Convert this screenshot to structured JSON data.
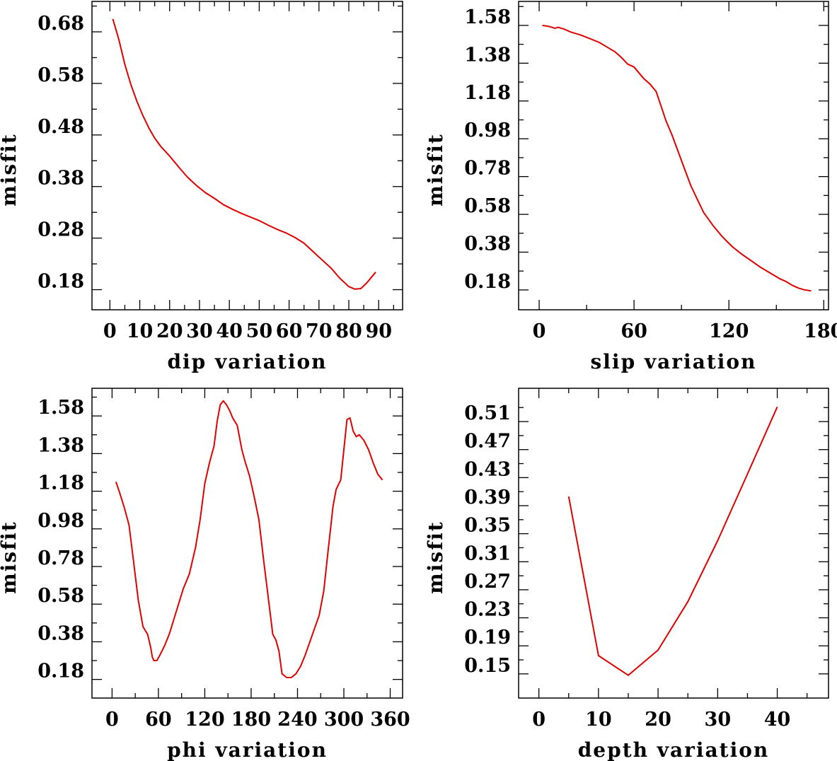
{
  "colors": {
    "curve": "#e00000",
    "axes": "#000000",
    "background": "#ffffff"
  },
  "chart_data": [
    {
      "id": "dip",
      "type": "line",
      "title": "",
      "xlabel": "dip    variation",
      "ylabel": "misfit",
      "xlim": [
        -6,
        98
      ],
      "ylim": [
        0.141,
        0.739
      ],
      "xticks": [
        0,
        10,
        20,
        30,
        40,
        50,
        60,
        70,
        80,
        90
      ],
      "xticklabels": [
        "0",
        "10",
        "20",
        "30",
        "40",
        "50",
        "60",
        "70",
        "80",
        "90"
      ],
      "xminor": [
        5,
        15,
        25,
        35,
        45,
        55,
        65,
        75,
        85,
        95
      ],
      "yticks": [
        0.18,
        0.28,
        0.38,
        0.48,
        0.58,
        0.68
      ],
      "yticklabels": [
        "0.18",
        "0.28",
        "0.38",
        "0.48",
        "0.58",
        "0.68"
      ],
      "yminor": [
        0.23,
        0.33,
        0.43,
        0.53,
        0.63,
        0.73
      ],
      "x": [
        1,
        3,
        5,
        7,
        9,
        11,
        13,
        15,
        17,
        20,
        23,
        26,
        29,
        32,
        35,
        38,
        41,
        44,
        47,
        50,
        53,
        56,
        59,
        62,
        65,
        68,
        71,
        74,
        77,
        80,
        82,
        84,
        86,
        89
      ],
      "values": [
        0.705,
        0.665,
        0.617,
        0.578,
        0.546,
        0.518,
        0.494,
        0.474,
        0.458,
        0.439,
        0.418,
        0.398,
        0.382,
        0.368,
        0.357,
        0.345,
        0.336,
        0.328,
        0.321,
        0.314,
        0.305,
        0.297,
        0.29,
        0.281,
        0.27,
        0.254,
        0.238,
        0.222,
        0.202,
        0.186,
        0.181,
        0.182,
        0.193,
        0.214
      ]
    },
    {
      "id": "slip",
      "type": "line",
      "title": "",
      "xlabel": "slip    variation",
      "ylabel": "misfit",
      "xlim": [
        -13,
        183
      ],
      "ylim": [
        0.075,
        1.707
      ],
      "xticks": [
        0,
        60,
        120,
        180
      ],
      "xticklabels": [
        "0",
        "60",
        "120",
        "180"
      ],
      "xminor": [
        30,
        90,
        150
      ],
      "yticks": [
        0.18,
        0.38,
        0.58,
        0.78,
        0.98,
        1.18,
        1.38,
        1.58
      ],
      "yticklabels": [
        "0.18",
        "0.38",
        "0.58",
        "0.78",
        "0.98",
        "1.18",
        "1.38",
        "1.58"
      ],
      "yminor": [
        0.28,
        0.48,
        0.68,
        0.88,
        1.08,
        1.28,
        1.48,
        1.68
      ],
      "x": [
        2,
        6,
        10,
        12,
        16,
        20,
        26,
        32,
        38,
        42,
        48,
        52,
        56,
        60,
        63,
        66,
        70,
        74,
        76,
        78,
        80,
        84,
        88,
        92,
        96,
        100,
        104,
        110,
        116,
        122,
        128,
        134,
        140,
        146,
        152,
        156,
        160,
        164,
        168,
        172
      ],
      "values": [
        1.58,
        1.575,
        1.565,
        1.57,
        1.56,
        1.545,
        1.53,
        1.51,
        1.49,
        1.47,
        1.44,
        1.41,
        1.375,
        1.36,
        1.33,
        1.3,
        1.27,
        1.23,
        1.18,
        1.13,
        1.08,
        1.0,
        0.91,
        0.82,
        0.73,
        0.66,
        0.59,
        0.52,
        0.46,
        0.41,
        0.37,
        0.335,
        0.3,
        0.27,
        0.24,
        0.225,
        0.205,
        0.19,
        0.18,
        0.175
      ]
    },
    {
      "id": "phi",
      "type": "line",
      "title": "",
      "xlabel": "phi     variation",
      "ylabel": "misfit",
      "xlim": [
        -26,
        376
      ],
      "ylim": [
        0.081,
        1.727
      ],
      "xticks": [
        0,
        60,
        120,
        180,
        240,
        300,
        360
      ],
      "xticklabels": [
        "0",
        "60",
        "120",
        "180",
        "240",
        "300",
        "360"
      ],
      "xminor": [
        30,
        90,
        150,
        210,
        270,
        330
      ],
      "yticks": [
        0.18,
        0.38,
        0.58,
        0.78,
        0.98,
        1.18,
        1.38,
        1.58
      ],
      "yticklabels": [
        "0.18",
        "0.38",
        "0.58",
        "0.78",
        "0.98",
        "1.18",
        "1.38",
        "1.58"
      ],
      "yminor": [
        0.28,
        0.48,
        0.68,
        0.88,
        1.08,
        1.28,
        1.48,
        1.68
      ],
      "x": [
        5,
        10,
        16,
        22,
        28,
        34,
        40,
        46,
        50,
        52,
        54,
        58,
        62,
        68,
        74,
        80,
        86,
        92,
        100,
        108,
        114,
        120,
        126,
        132,
        136,
        140,
        144,
        148,
        152,
        156,
        162,
        168,
        172,
        178,
        184,
        190,
        196,
        202,
        208,
        212,
        216,
        220,
        226,
        232,
        238,
        244,
        250,
        256,
        262,
        268,
        274,
        280,
        286,
        290,
        296,
        300,
        304,
        308,
        312,
        316,
        320,
        326,
        332,
        338,
        344,
        350
      ],
      "values": [
        1.23,
        1.17,
        1.09,
        1.0,
        0.8,
        0.6,
        0.46,
        0.42,
        0.35,
        0.3,
        0.28,
        0.28,
        0.31,
        0.36,
        0.42,
        0.5,
        0.58,
        0.66,
        0.74,
        0.88,
        1.03,
        1.22,
        1.33,
        1.42,
        1.55,
        1.64,
        1.66,
        1.64,
        1.61,
        1.57,
        1.53,
        1.4,
        1.34,
        1.26,
        1.15,
        1.03,
        0.82,
        0.62,
        0.42,
        0.39,
        0.33,
        0.21,
        0.19,
        0.19,
        0.21,
        0.25,
        0.31,
        0.38,
        0.45,
        0.52,
        0.65,
        0.88,
        1.1,
        1.19,
        1.24,
        1.4,
        1.56,
        1.57,
        1.5,
        1.47,
        1.48,
        1.45,
        1.4,
        1.33,
        1.27,
        1.24
      ]
    },
    {
      "id": "depth",
      "type": "line",
      "title": "",
      "xlabel": "depth   variation",
      "ylabel": "misfit",
      "xlim": [
        -3.4,
        48.6
      ],
      "ylim": [
        0.1155,
        0.5575
      ],
      "xticks": [
        0,
        10,
        20,
        30,
        40
      ],
      "xticklabels": [
        "0",
        "10",
        "20",
        "30",
        "40"
      ],
      "xminor": [
        5,
        15,
        25,
        35,
        45
      ],
      "yticks": [
        0.15,
        0.19,
        0.23,
        0.27,
        0.31,
        0.35,
        0.39,
        0.43,
        0.47,
        0.51
      ],
      "yticklabels": [
        "0.15",
        "0.19",
        "0.23",
        "0.27",
        "0.31",
        "0.35",
        "0.39",
        "0.43",
        "0.47",
        "0.51"
      ],
      "yminor": [
        0.17,
        0.21,
        0.25,
        0.29,
        0.33,
        0.37,
        0.41,
        0.45,
        0.49,
        0.53
      ],
      "x": [
        5,
        10,
        15,
        20,
        25,
        30,
        35,
        40
      ],
      "values": [
        0.403,
        0.176,
        0.148,
        0.184,
        0.253,
        0.34,
        0.435,
        0.531
      ]
    }
  ]
}
